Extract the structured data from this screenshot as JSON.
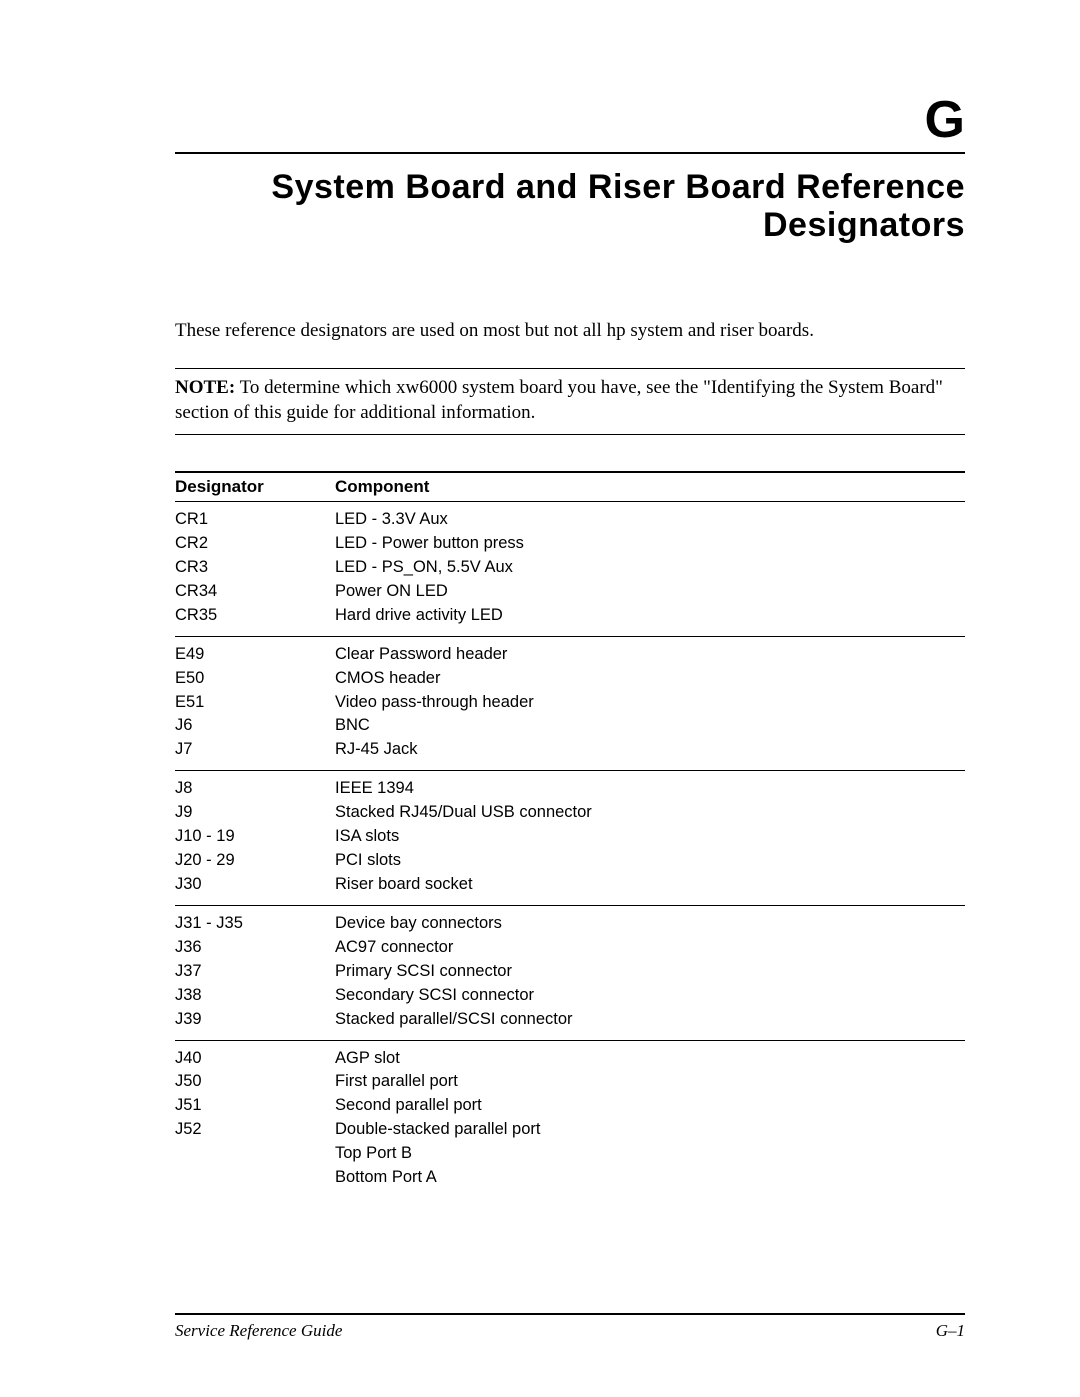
{
  "appendix_letter": "G",
  "title_line1": "System Board and Riser Board Reference",
  "title_line2": "Designators",
  "intro": "These reference designators are used on most but not all hp system and riser boards.",
  "note_label": "NOTE:",
  "note_body": " To determine which xw6000 system board you have, see the \"Identifying the System Board\" section of this guide for additional information.",
  "table": {
    "columns": [
      "Designator",
      "Component"
    ],
    "groups": [
      [
        {
          "d": "CR1",
          "c": "LED - 3.3V Aux"
        },
        {
          "d": "CR2",
          "c": "LED - Power button press"
        },
        {
          "d": "CR3",
          "c": "LED - PS_ON, 5.5V Aux"
        },
        {
          "d": "CR34",
          "c": "Power ON LED"
        },
        {
          "d": "CR35",
          "c": "Hard drive activity LED"
        }
      ],
      [
        {
          "d": "E49",
          "c": "Clear Password header"
        },
        {
          "d": "E50",
          "c": "CMOS header"
        },
        {
          "d": "E51",
          "c": "Video pass-through header"
        },
        {
          "d": "J6",
          "c": "BNC"
        },
        {
          "d": "J7",
          "c": "RJ-45 Jack"
        }
      ],
      [
        {
          "d": "J8",
          "c": "IEEE 1394"
        },
        {
          "d": "J9",
          "c": "Stacked RJ45/Dual USB connector"
        },
        {
          "d": "J10 - 19",
          "c": "ISA slots"
        },
        {
          "d": "J20 - 29",
          "c": "PCI slots"
        },
        {
          "d": "J30",
          "c": "Riser board socket"
        }
      ],
      [
        {
          "d": "J31 - J35",
          "c": "Device bay connectors"
        },
        {
          "d": "J36",
          "c": "AC97 connector"
        },
        {
          "d": "J37",
          "c": "Primary SCSI connector"
        },
        {
          "d": "J38",
          "c": "Secondary SCSI connector"
        },
        {
          "d": "J39",
          "c": "Stacked parallel/SCSI connector"
        }
      ],
      [
        {
          "d": "J40",
          "c": "AGP slot"
        },
        {
          "d": "J50",
          "c": "First parallel port"
        },
        {
          "d": "J51",
          "c": "Second parallel port"
        },
        {
          "d": "J52",
          "c": "Double-stacked parallel port"
        },
        {
          "d": "",
          "c": "Top Port B"
        },
        {
          "d": "",
          "c": "Bottom Port A"
        }
      ]
    ]
  },
  "footer_left": "Service Reference Guide",
  "footer_right": "G–1"
}
